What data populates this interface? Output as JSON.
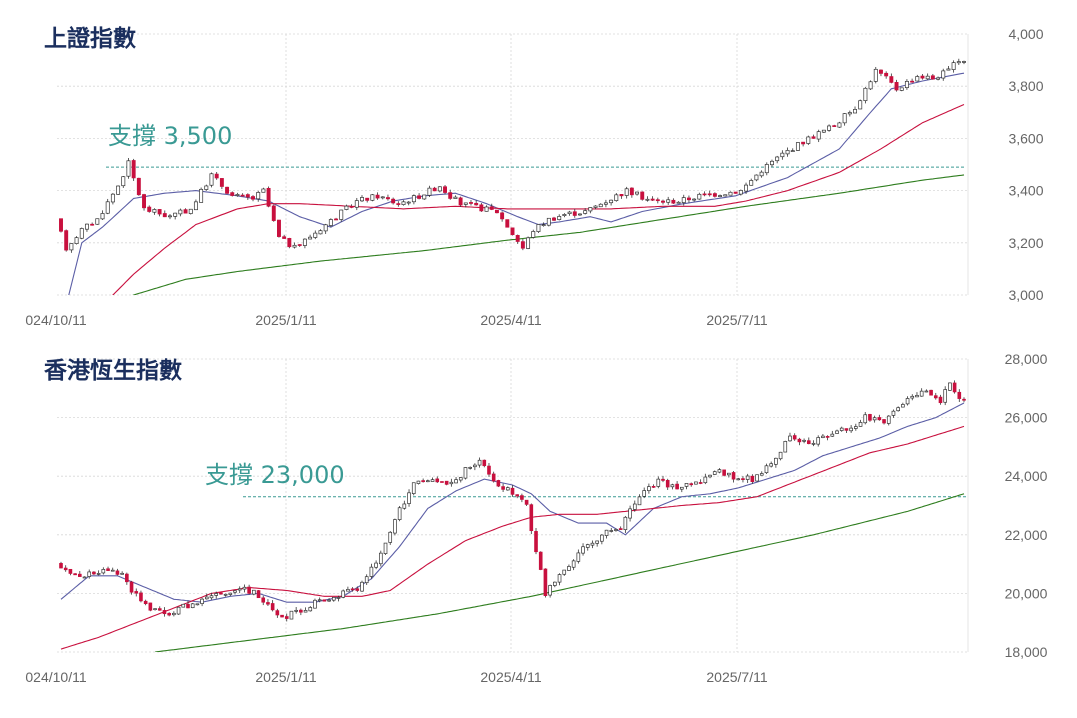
{
  "chart_data": [
    {
      "type": "candlestick",
      "title": "上證指數",
      "ylim": [
        3000,
        4000
      ],
      "y_ticks": [
        "3,000",
        "3,200",
        "3,400",
        "3,600",
        "3,800",
        "4,000"
      ],
      "x_ticks": [
        "024/10/11",
        "2025/1/11",
        "2025/4/11",
        "2025/7/11"
      ],
      "support_label": "支撐 3,500",
      "support_value": 3490,
      "up_color": "#ffffff",
      "down_color": "#c8103e",
      "ma_colors": [
        "#5b5ea6",
        "#c8103e",
        "#2e7d1e"
      ],
      "grid": true,
      "price_path": [
        [
          0,
          3290
        ],
        [
          2,
          3180
        ],
        [
          5,
          3250
        ],
        [
          8,
          3290
        ],
        [
          12,
          3420
        ],
        [
          14,
          3505
        ],
        [
          17,
          3330
        ],
        [
          22,
          3300
        ],
        [
          26,
          3330
        ],
        [
          30,
          3460
        ],
        [
          34,
          3380
        ],
        [
          38,
          3370
        ],
        [
          40,
          3400
        ],
        [
          43,
          3220
        ],
        [
          46,
          3180
        ],
        [
          50,
          3240
        ],
        [
          54,
          3300
        ],
        [
          58,
          3360
        ],
        [
          62,
          3380
        ],
        [
          66,
          3350
        ],
        [
          70,
          3380
        ],
        [
          74,
          3420
        ],
        [
          76,
          3380
        ],
        [
          78,
          3350
        ],
        [
          85,
          3320
        ],
        [
          90,
          3180
        ],
        [
          92,
          3250
        ],
        [
          95,
          3290
        ],
        [
          98,
          3310
        ],
        [
          102,
          3320
        ],
        [
          106,
          3360
        ],
        [
          110,
          3400
        ],
        [
          115,
          3360
        ],
        [
          120,
          3360
        ],
        [
          124,
          3380
        ],
        [
          128,
          3390
        ],
        [
          132,
          3400
        ],
        [
          136,
          3480
        ],
        [
          140,
          3540
        ],
        [
          145,
          3600
        ],
        [
          150,
          3650
        ],
        [
          154,
          3720
        ],
        [
          158,
          3860
        ],
        [
          160,
          3830
        ],
        [
          162,
          3790
        ],
        [
          166,
          3840
        ],
        [
          169,
          3830
        ],
        [
          172,
          3860
        ],
        [
          174,
          3900
        ]
      ],
      "ma_series": [
        {
          "values": [
            [
              0,
              2880
            ],
            [
              4,
              3200
            ],
            [
              8,
              3260
            ],
            [
              14,
              3370
            ],
            [
              20,
              3390
            ],
            [
              26,
              3400
            ],
            [
              34,
              3380
            ],
            [
              40,
              3360
            ],
            [
              46,
              3300
            ],
            [
              52,
              3260
            ],
            [
              58,
              3320
            ],
            [
              64,
              3360
            ],
            [
              70,
              3380
            ],
            [
              76,
              3390
            ],
            [
              82,
              3350
            ],
            [
              88,
              3300
            ],
            [
              92,
              3270
            ],
            [
              96,
              3280
            ],
            [
              102,
              3300
            ],
            [
              106,
              3280
            ],
            [
              112,
              3320
            ],
            [
              120,
              3350
            ],
            [
              130,
              3380
            ],
            [
              140,
              3450
            ],
            [
              150,
              3560
            ],
            [
              156,
              3700
            ],
            [
              160,
              3790
            ],
            [
              166,
              3820
            ],
            [
              174,
              3850
            ]
          ]
        },
        {
          "values": [
            [
              0,
              2850
            ],
            [
              8,
              2960
            ],
            [
              14,
              3080
            ],
            [
              20,
              3180
            ],
            [
              26,
              3270
            ],
            [
              34,
              3330
            ],
            [
              40,
              3350
            ],
            [
              46,
              3350
            ],
            [
              56,
              3340
            ],
            [
              66,
              3330
            ],
            [
              76,
              3340
            ],
            [
              86,
              3330
            ],
            [
              96,
              3330
            ],
            [
              106,
              3330
            ],
            [
              116,
              3340
            ],
            [
              126,
              3340
            ],
            [
              132,
              3360
            ],
            [
              140,
              3400
            ],
            [
              150,
              3470
            ],
            [
              158,
              3560
            ],
            [
              166,
              3660
            ],
            [
              174,
              3730
            ]
          ]
        },
        {
          "values": [
            [
              0,
              2880
            ],
            [
              14,
              3000
            ],
            [
              24,
              3060
            ],
            [
              34,
              3090
            ],
            [
              50,
              3130
            ],
            [
              70,
              3170
            ],
            [
              86,
              3210
            ],
            [
              100,
              3240
            ],
            [
              116,
              3290
            ],
            [
              132,
              3340
            ],
            [
              150,
              3390
            ],
            [
              166,
              3440
            ],
            [
              174,
              3460
            ]
          ]
        }
      ]
    },
    {
      "type": "candlestick",
      "title": "香港恆生指數",
      "ylim": [
        18000,
        28000
      ],
      "y_ticks": [
        "18,000",
        "20,000",
        "22,000",
        "24,000",
        "26,000",
        "28,000"
      ],
      "x_ticks": [
        "024/10/11",
        "2025/1/11",
        "2025/4/11",
        "2025/7/11"
      ],
      "support_label": "支撐 23,000",
      "support_value": 23300,
      "up_color": "#ffffff",
      "down_color": "#c8103e",
      "ma_colors": [
        "#5b5ea6",
        "#c8103e",
        "#2e7d1e"
      ],
      "grid": true,
      "price_path": [
        [
          0,
          21000
        ],
        [
          3,
          20700
        ],
        [
          6,
          20600
        ],
        [
          10,
          20800
        ],
        [
          14,
          20700
        ],
        [
          16,
          20100
        ],
        [
          20,
          19500
        ],
        [
          24,
          19300
        ],
        [
          28,
          19600
        ],
        [
          32,
          19800
        ],
        [
          36,
          20000
        ],
        [
          40,
          20200
        ],
        [
          44,
          19800
        ],
        [
          48,
          19200
        ],
        [
          52,
          19400
        ],
        [
          56,
          19800
        ],
        [
          60,
          19900
        ],
        [
          64,
          20200
        ],
        [
          68,
          21000
        ],
        [
          72,
          22500
        ],
        [
          76,
          23800
        ],
        [
          80,
          23900
        ],
        [
          84,
          23700
        ],
        [
          88,
          24400
        ],
        [
          90,
          24500
        ],
        [
          94,
          23700
        ],
        [
          98,
          23300
        ],
        [
          100,
          23000
        ],
        [
          104,
          20000
        ],
        [
          108,
          20800
        ],
        [
          112,
          21500
        ],
        [
          116,
          22000
        ],
        [
          120,
          22300
        ],
        [
          124,
          23300
        ],
        [
          128,
          23800
        ],
        [
          132,
          23600
        ],
        [
          136,
          23700
        ],
        [
          140,
          24200
        ],
        [
          144,
          24000
        ],
        [
          148,
          23900
        ],
        [
          152,
          24500
        ],
        [
          156,
          25300
        ],
        [
          160,
          25100
        ],
        [
          164,
          25400
        ],
        [
          168,
          25600
        ],
        [
          172,
          26000
        ],
        [
          176,
          25900
        ],
        [
          180,
          26500
        ],
        [
          184,
          26800
        ],
        [
          186,
          26800
        ],
        [
          188,
          26500
        ],
        [
          190,
          27200
        ],
        [
          192,
          26700
        ]
      ],
      "ma_series": [
        {
          "values": [
            [
              0,
              19800
            ],
            [
              6,
              20600
            ],
            [
              12,
              20600
            ],
            [
              18,
              20200
            ],
            [
              24,
              19800
            ],
            [
              30,
              19700
            ],
            [
              36,
              19900
            ],
            [
              42,
              20000
            ],
            [
              48,
              19700
            ],
            [
              54,
              19700
            ],
            [
              60,
              19900
            ],
            [
              66,
              20500
            ],
            [
              72,
              21600
            ],
            [
              78,
              22900
            ],
            [
              84,
              23500
            ],
            [
              90,
              23900
            ],
            [
              96,
              23700
            ],
            [
              100,
              23400
            ],
            [
              104,
              22800
            ],
            [
              110,
              22400
            ],
            [
              116,
              22400
            ],
            [
              120,
              22000
            ],
            [
              126,
              22900
            ],
            [
              132,
              23300
            ],
            [
              138,
              23400
            ],
            [
              144,
              23600
            ],
            [
              150,
              23900
            ],
            [
              156,
              24200
            ],
            [
              162,
              24700
            ],
            [
              168,
              25000
            ],
            [
              174,
              25300
            ],
            [
              180,
              25700
            ],
            [
              186,
              26000
            ],
            [
              192,
              26500
            ]
          ]
        },
        {
          "values": [
            [
              0,
              18100
            ],
            [
              8,
              18500
            ],
            [
              16,
              19000
            ],
            [
              24,
              19500
            ],
            [
              32,
              20000
            ],
            [
              40,
              20200
            ],
            [
              48,
              20100
            ],
            [
              56,
              19900
            ],
            [
              64,
              19900
            ],
            [
              70,
              20100
            ],
            [
              78,
              21000
            ],
            [
              86,
              21800
            ],
            [
              94,
              22300
            ],
            [
              100,
              22600
            ],
            [
              106,
              22700
            ],
            [
              114,
              22700
            ],
            [
              120,
              22800
            ],
            [
              126,
              22900
            ],
            [
              132,
              23000
            ],
            [
              140,
              23100
            ],
            [
              148,
              23300
            ],
            [
              156,
              23800
            ],
            [
              164,
              24300
            ],
            [
              172,
              24800
            ],
            [
              180,
              25100
            ],
            [
              186,
              25400
            ],
            [
              192,
              25700
            ]
          ]
        },
        {
          "values": [
            [
              20,
              18000
            ],
            [
              40,
              18400
            ],
            [
              60,
              18800
            ],
            [
              80,
              19300
            ],
            [
              100,
              19900
            ],
            [
              120,
              20600
            ],
            [
              140,
              21300
            ],
            [
              160,
              22000
            ],
            [
              180,
              22800
            ],
            [
              192,
              23400
            ]
          ]
        }
      ]
    }
  ]
}
